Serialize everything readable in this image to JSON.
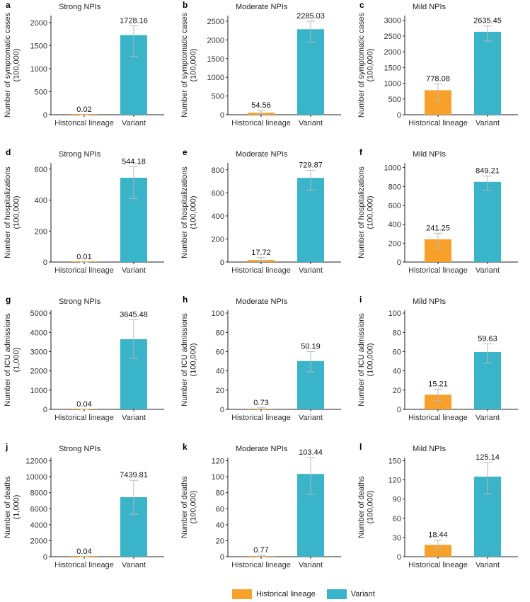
{
  "colors": {
    "historical": "#F7A12B",
    "variant": "#3AB4C8",
    "errorbar": "#b8b8b8",
    "axis": "#222222"
  },
  "legend": {
    "items": [
      "Historical lineage",
      "Variant"
    ]
  },
  "chart_data": [
    {
      "type": "bar",
      "panel": "a",
      "title": "Strong NPIs",
      "ylabel": [
        "Number of symptomatic cases",
        "(100,000)"
      ],
      "categories": [
        "Historical lineage",
        "Variant"
      ],
      "values": [
        0.02,
        1728.16
      ],
      "labels": [
        "0.02",
        "1728.16"
      ],
      "err_low": [
        0,
        1260
      ],
      "err_high": [
        0.05,
        1930
      ],
      "ylim": [
        0,
        2150
      ],
      "yticks": [
        0,
        500,
        1000,
        1500,
        2000
      ]
    },
    {
      "type": "bar",
      "panel": "b",
      "title": "Moderate NPIs",
      "ylabel": [
        "Number of symptomatic cases",
        "(100,000)"
      ],
      "categories": [
        "Historical lineage",
        "Variant"
      ],
      "values": [
        54.56,
        2285.03
      ],
      "labels": [
        "54.56",
        "2285.03"
      ],
      "err_low": [
        20,
        1940
      ],
      "err_high": [
        115,
        2500
      ],
      "ylim": [
        0,
        2650
      ],
      "yticks": [
        0,
        500,
        1000,
        1500,
        2000,
        2500
      ]
    },
    {
      "type": "bar",
      "panel": "c",
      "title": "Mild NPIs",
      "ylabel": [
        "Number of symptomatic cases",
        "(100,000)"
      ],
      "categories": [
        "Historical lineage",
        "Variant"
      ],
      "values": [
        778.08,
        2635.45
      ],
      "labels": [
        "778.08",
        "2635.45"
      ],
      "err_low": [
        460,
        2340
      ],
      "err_high": [
        980,
        2820
      ],
      "ylim": [
        0,
        3150
      ],
      "yticks": [
        0,
        500,
        1000,
        1500,
        2000,
        2500,
        3000
      ]
    },
    {
      "type": "bar",
      "panel": "d",
      "title": "Strong NPIs",
      "ylabel": [
        "Number of hospitalizations",
        "(100,000)"
      ],
      "categories": [
        "Historical lineage",
        "Variant"
      ],
      "values": [
        0.01,
        544.18
      ],
      "labels": [
        "0.01",
        "544.18"
      ],
      "err_low": [
        0,
        410
      ],
      "err_high": [
        0.02,
        615
      ],
      "ylim": [
        0,
        640
      ],
      "yticks": [
        0,
        200,
        400,
        600
      ]
    },
    {
      "type": "bar",
      "panel": "e",
      "title": "Moderate NPIs",
      "ylabel": [
        "Number of hospitalizations",
        "(100,000)"
      ],
      "categories": [
        "Historical lineage",
        "Variant"
      ],
      "values": [
        17.72,
        729.87
      ],
      "labels": [
        "17.72",
        "729.87"
      ],
      "err_low": [
        5,
        625
      ],
      "err_high": [
        38,
        795
      ],
      "ylim": [
        0,
        860
      ],
      "yticks": [
        0,
        200,
        400,
        600,
        800
      ]
    },
    {
      "type": "bar",
      "panel": "f",
      "title": "Mild NPIs",
      "ylabel": [
        "Number of hospitalizations",
        "(100,000)"
      ],
      "categories": [
        "Historical lineage",
        "Variant"
      ],
      "values": [
        241.25,
        849.21
      ],
      "labels": [
        "241.25",
        "849.21"
      ],
      "err_low": [
        145,
        760
      ],
      "err_high": [
        305,
        910
      ],
      "ylim": [
        0,
        1050
      ],
      "yticks": [
        0,
        200,
        400,
        600,
        800,
        1000
      ]
    },
    {
      "type": "bar",
      "panel": "g",
      "title": "Strong NPIs",
      "ylabel": [
        "Number of ICU admissions",
        "(1,000)"
      ],
      "categories": [
        "Historical lineage",
        "Variant"
      ],
      "values": [
        0.04,
        3645.48
      ],
      "labels": [
        "0.04",
        "3645.48"
      ],
      "err_low": [
        0,
        2640
      ],
      "err_high": [
        0.1,
        4660
      ],
      "ylim": [
        0,
        5150
      ],
      "yticks": [
        0,
        1000,
        2000,
        3000,
        4000,
        5000
      ]
    },
    {
      "type": "bar",
      "panel": "h",
      "title": "Moderate NPIs",
      "ylabel": [
        "Number of ICU admissions",
        "(100,000)"
      ],
      "categories": [
        "Historical lineage",
        "Variant"
      ],
      "values": [
        0.73,
        50.19
      ],
      "labels": [
        "0.73",
        "50.19"
      ],
      "err_low": [
        0.2,
        39
      ],
      "err_high": [
        1.6,
        60
      ],
      "ylim": [
        0,
        103
      ],
      "yticks": [
        0,
        20,
        40,
        60,
        80,
        100
      ]
    },
    {
      "type": "bar",
      "panel": "i",
      "title": "Mild NPIs",
      "ylabel": [
        "Number of ICU admissions",
        "(100,000)"
      ],
      "categories": [
        "Historical lineage",
        "Variant"
      ],
      "values": [
        15.21,
        59.63
      ],
      "labels": [
        "15.21",
        "59.63"
      ],
      "err_low": [
        9,
        48
      ],
      "err_high": [
        21,
        68
      ],
      "ylim": [
        0,
        103
      ],
      "yticks": [
        0,
        20,
        40,
        60,
        80,
        100
      ]
    },
    {
      "type": "bar",
      "panel": "j",
      "title": "Strong NPIs",
      "ylabel": [
        "Number of deaths",
        "(1,000)"
      ],
      "categories": [
        "Historical lineage",
        "Variant"
      ],
      "values": [
        0.04,
        7439.81
      ],
      "labels": [
        "0.04",
        "7439.81"
      ],
      "err_low": [
        0,
        5300
      ],
      "err_high": [
        0.1,
        9550
      ],
      "ylim": [
        0,
        12400
      ],
      "yticks": [
        0,
        2000,
        4000,
        6000,
        8000,
        10000,
        12000
      ]
    },
    {
      "type": "bar",
      "panel": "k",
      "title": "Moderate NPIs",
      "ylabel": [
        "Number of deaths",
        "(100,000)"
      ],
      "categories": [
        "Historical lineage",
        "Variant"
      ],
      "values": [
        0.77,
        103.44
      ],
      "labels": [
        "0.77",
        "103.44"
      ],
      "err_low": [
        0.2,
        78
      ],
      "err_high": [
        1.7,
        124
      ],
      "ylim": [
        0,
        124
      ],
      "yticks": [
        0,
        20,
        40,
        60,
        80,
        100,
        120
      ]
    },
    {
      "type": "bar",
      "panel": "l",
      "title": "Mild NPIs",
      "ylabel": [
        "Number of deaths",
        "(100,000)"
      ],
      "categories": [
        "Historical lineage",
        "Variant"
      ],
      "values": [
        18.44,
        125.14
      ],
      "labels": [
        "18.44",
        "125.14"
      ],
      "err_low": [
        11,
        98
      ],
      "err_high": [
        26,
        147
      ],
      "ylim": [
        0,
        155
      ],
      "yticks": [
        0,
        30,
        60,
        90,
        120,
        150
      ]
    }
  ]
}
